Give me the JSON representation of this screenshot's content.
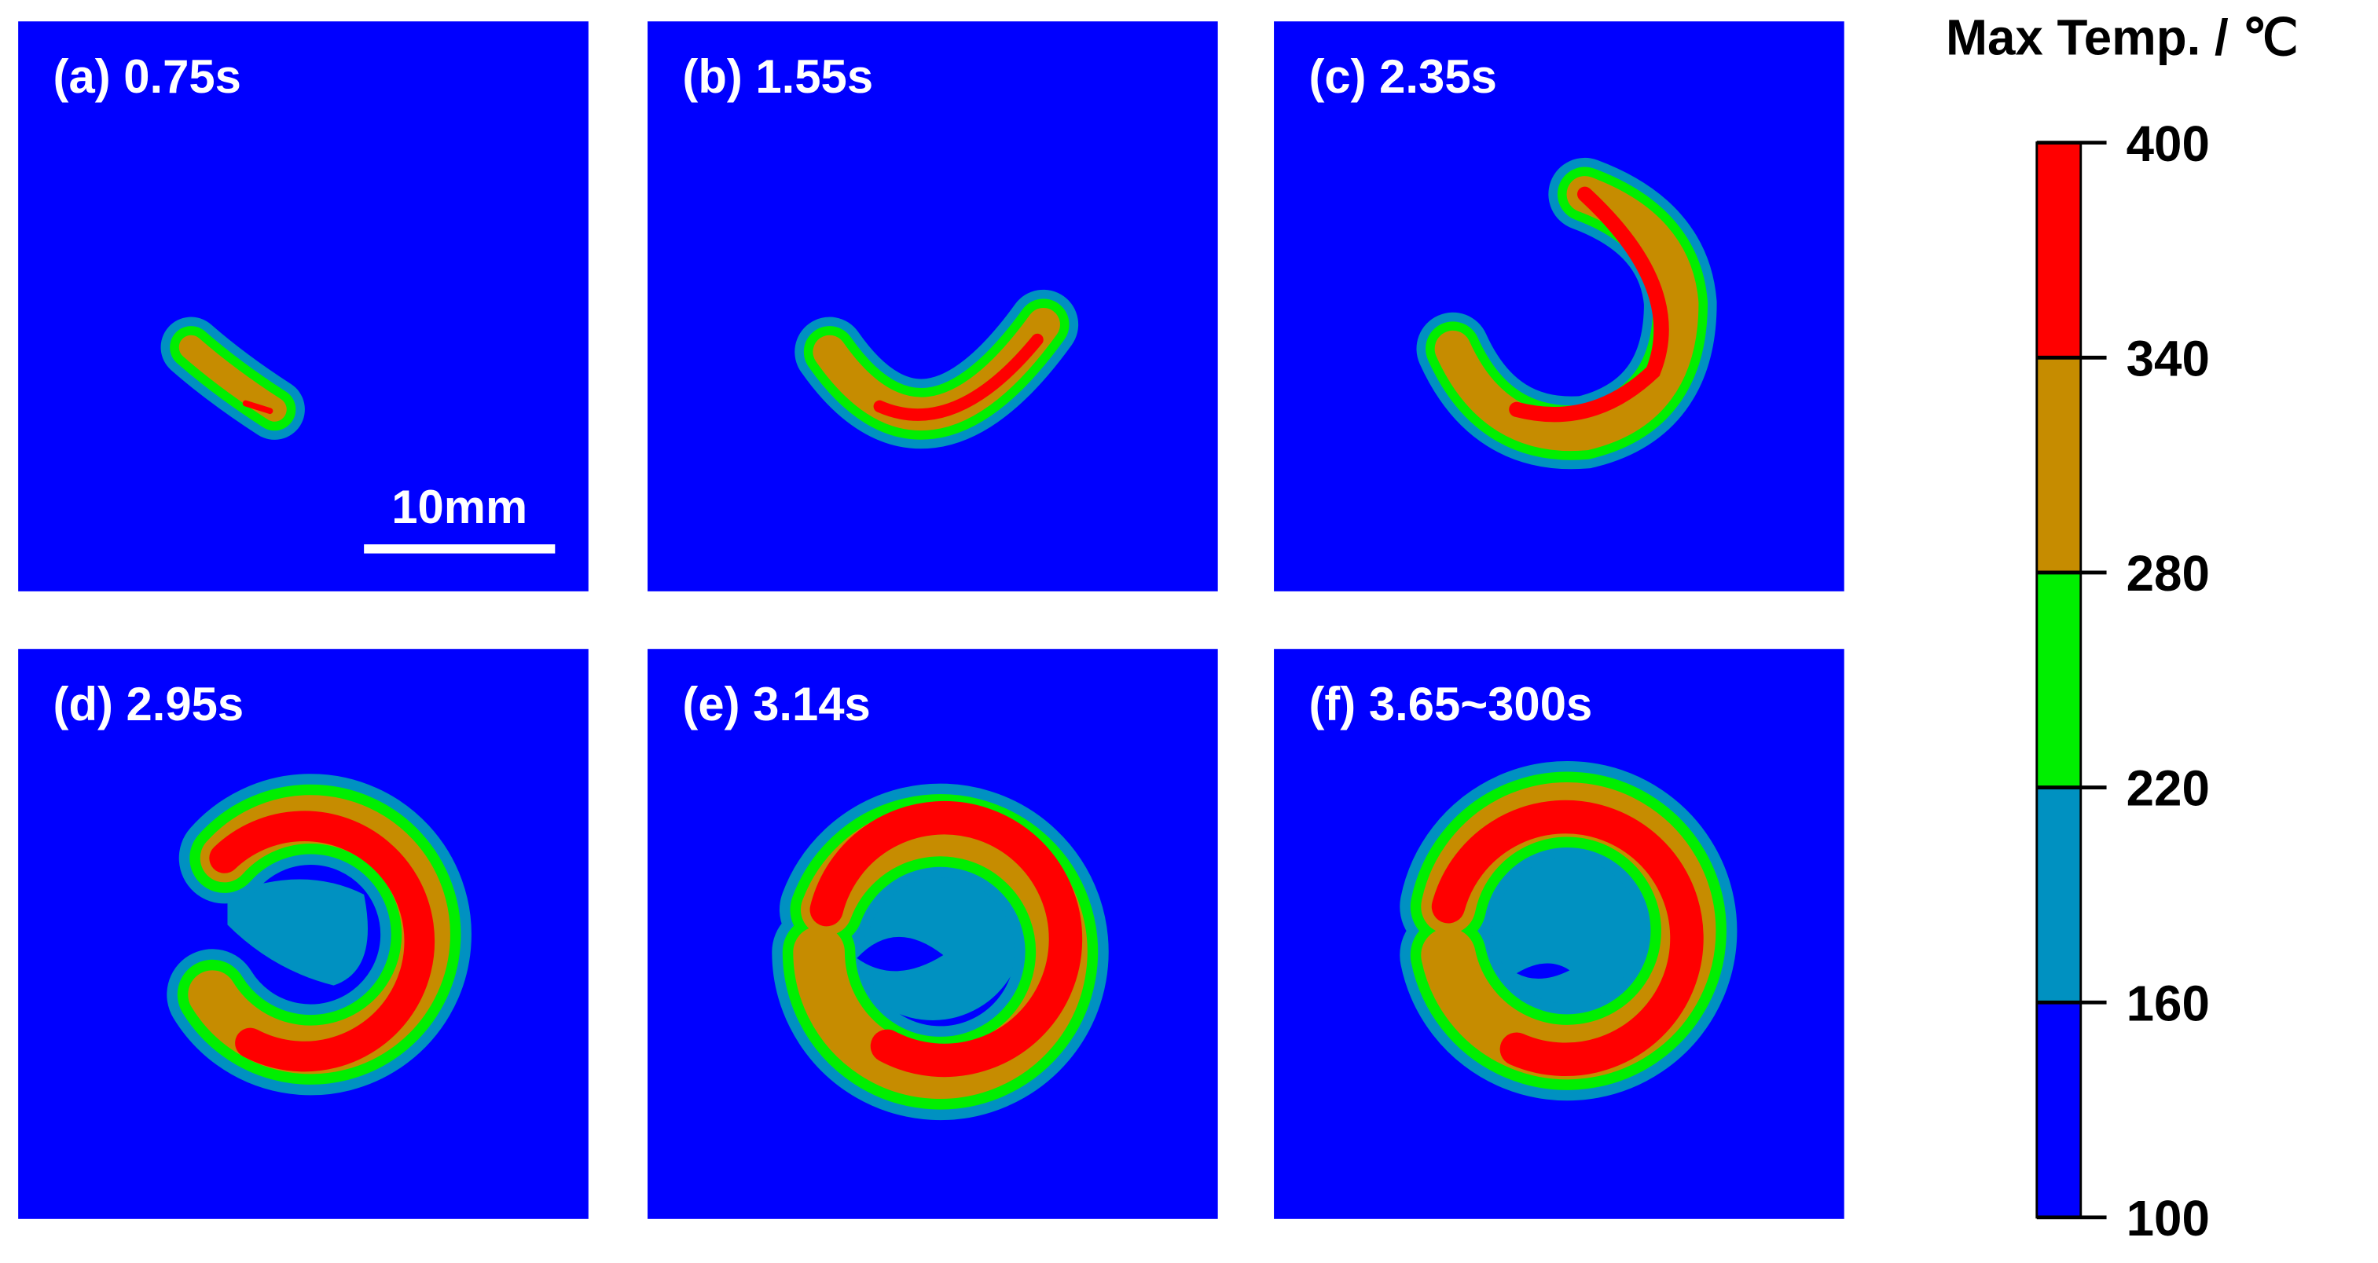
{
  "panels": [
    {
      "label": "(a) 0.75s"
    },
    {
      "label": "(b) 1.55s"
    },
    {
      "label": "(c) 2.35s"
    },
    {
      "label": "(d) 2.95s"
    },
    {
      "label": "(e) 3.14s"
    },
    {
      "label": "(f) 3.65~300s"
    }
  ],
  "scale_bar": "10mm",
  "colorbar": {
    "title": "Max Temp. / ℃",
    "lim": [
      100,
      400
    ],
    "ticks": [
      100,
      160,
      220,
      280,
      340,
      400
    ],
    "colors": [
      "#0000ff",
      "#0091c1",
      "#00ef00",
      "#c68c00",
      "#ff0000"
    ]
  }
}
